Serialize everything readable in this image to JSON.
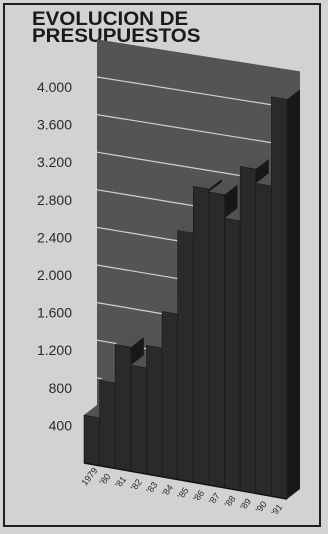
{
  "chart_data": {
    "type": "bar",
    "title_lines": [
      "EVOLUCION DE",
      "PRESUPUESTOS"
    ],
    "categories": [
      "1979",
      "'80",
      "'81",
      "'82",
      "'83",
      "'84",
      "'85",
      "'86",
      "'87",
      "'88",
      "'89",
      "'90",
      "'91"
    ],
    "values": [
      510,
      910,
      1320,
      1130,
      1370,
      1760,
      2650,
      3150,
      3120,
      2870,
      3450,
      3300,
      4250
    ],
    "y_ticks": [
      "4.000",
      "3.600",
      "3.200",
      "2.800",
      "2.400",
      "2.000",
      "1.600",
      "1.200",
      "800",
      "400"
    ],
    "ylim": [
      0,
      4400
    ],
    "grid": true,
    "colors": {
      "background": "#d2d2d2",
      "back_wall": "#545454",
      "gridline": "#e6e6e6",
      "bar_front": "#2a2a2a",
      "bar_top": "#525252",
      "bar_side": "#181818",
      "border": "#1e1e1e"
    }
  }
}
